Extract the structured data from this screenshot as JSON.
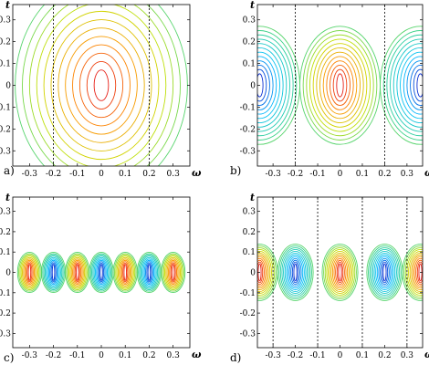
{
  "chart_data": [
    {
      "panel": "a)",
      "type": "contour",
      "xlabel": "ω",
      "ylabel": "t",
      "xlim": [
        -0.37,
        0.37
      ],
      "ylim": [
        -0.37,
        0.37
      ],
      "xticks": [
        "-0.3",
        "-0.2",
        "-0.1",
        "0",
        "0.1",
        "0.2",
        "0.3"
      ],
      "yticks": [
        "0.3",
        "0.2",
        "0.1",
        "0",
        "-0.1",
        "-0.2",
        "-0.3"
      ],
      "dashed_lines_omega": [
        -0.2,
        0.2
      ],
      "pattern": "single vertically elongated peak centered at omega=0",
      "peaks": [
        {
          "omega": 0.0,
          "t": 0.0,
          "sign": 1
        }
      ],
      "levels": 12,
      "colormap": [
        "#1010c8",
        "#00c0ff",
        "#30d090",
        "#c8e000",
        "#ff9000",
        "#e00020"
      ]
    },
    {
      "panel": "b)",
      "type": "contour",
      "xlabel": "ω",
      "ylabel": "t",
      "xlim": [
        -0.37,
        0.37
      ],
      "ylim": [
        -0.37,
        0.37
      ],
      "xticks": [
        "-0.3",
        "-0.2",
        "-0.1",
        "0",
        "0.1",
        "0.2",
        "0.3"
      ],
      "yticks": [
        "0.3",
        "0.2",
        "0.1",
        "0",
        "-0.1",
        "-0.2",
        "-0.3"
      ],
      "dashed_lines_omega": [
        -0.2,
        0.2
      ],
      "pattern": "central positive peak at omega=0 with negative lobes near omega=±0.35",
      "peaks": [
        {
          "omega": 0.0,
          "t": 0.0,
          "sign": 1
        },
        {
          "omega": -0.36,
          "t": 0.0,
          "sign": -1
        },
        {
          "omega": 0.36,
          "t": 0.0,
          "sign": -1
        }
      ],
      "levels": 12,
      "colormap": [
        "#1010c8",
        "#00c0ff",
        "#30d090",
        "#c8e000",
        "#ff9000",
        "#e00020"
      ]
    },
    {
      "panel": "c)",
      "type": "contour",
      "xlabel": "ω",
      "ylabel": "t",
      "xlim": [
        -0.37,
        0.37
      ],
      "ylim": [
        -0.37,
        0.37
      ],
      "xticks": [
        "-0.3",
        "-0.2",
        "-0.1",
        "0",
        "0.1",
        "0.2",
        "0.3"
      ],
      "yticks": [
        "0.3",
        "0.2",
        "0.1",
        "0",
        "-0.1",
        "-0.2",
        "-0.3"
      ],
      "dashed_lines_omega": [],
      "pattern": "alternating vertical stripes of positive and negative peaks along omega",
      "peaks": [
        {
          "omega": -0.3,
          "t": 0.0,
          "sign": 1
        },
        {
          "omega": -0.2,
          "t": 0.0,
          "sign": -1
        },
        {
          "omega": -0.1,
          "t": 0.0,
          "sign": 1
        },
        {
          "omega": 0.0,
          "t": 0.0,
          "sign": -1
        },
        {
          "omega": 0.1,
          "t": 0.0,
          "sign": 1
        },
        {
          "omega": 0.2,
          "t": 0.0,
          "sign": -1
        },
        {
          "omega": 0.3,
          "t": 0.0,
          "sign": 1
        }
      ],
      "levels": 10,
      "colormap": [
        "#1010c8",
        "#00c0ff",
        "#30d090",
        "#c8e000",
        "#ff9000",
        "#e00020"
      ]
    },
    {
      "panel": "d)",
      "type": "contour",
      "xlabel": "ω",
      "ylabel": "t",
      "xlim": [
        -0.37,
        0.37
      ],
      "ylim": [
        -0.37,
        0.37
      ],
      "xticks": [
        "-0.3",
        "-0.2",
        "-0.1",
        "0",
        "0.1",
        "0.2",
        "0.3"
      ],
      "yticks": [
        "0.3",
        "0.2",
        "0.1",
        "0",
        "-0.1",
        "-0.2",
        "-0.3"
      ],
      "dashed_lines_omega": [
        -0.3,
        -0.1,
        0.1,
        0.3
      ],
      "pattern": "alternating elliptical peaks and troughs centered between dashed lines",
      "peaks": [
        {
          "omega": -0.36,
          "t": 0.0,
          "sign": 1
        },
        {
          "omega": -0.2,
          "t": 0.0,
          "sign": -1
        },
        {
          "omega": 0.0,
          "t": 0.0,
          "sign": 1
        },
        {
          "omega": 0.2,
          "t": 0.0,
          "sign": -1
        },
        {
          "omega": 0.36,
          "t": 0.0,
          "sign": 1
        }
      ],
      "levels": 12,
      "colormap": [
        "#1010c8",
        "#00c0ff",
        "#30d090",
        "#c8e000",
        "#ff9000",
        "#e00020"
      ]
    }
  ]
}
